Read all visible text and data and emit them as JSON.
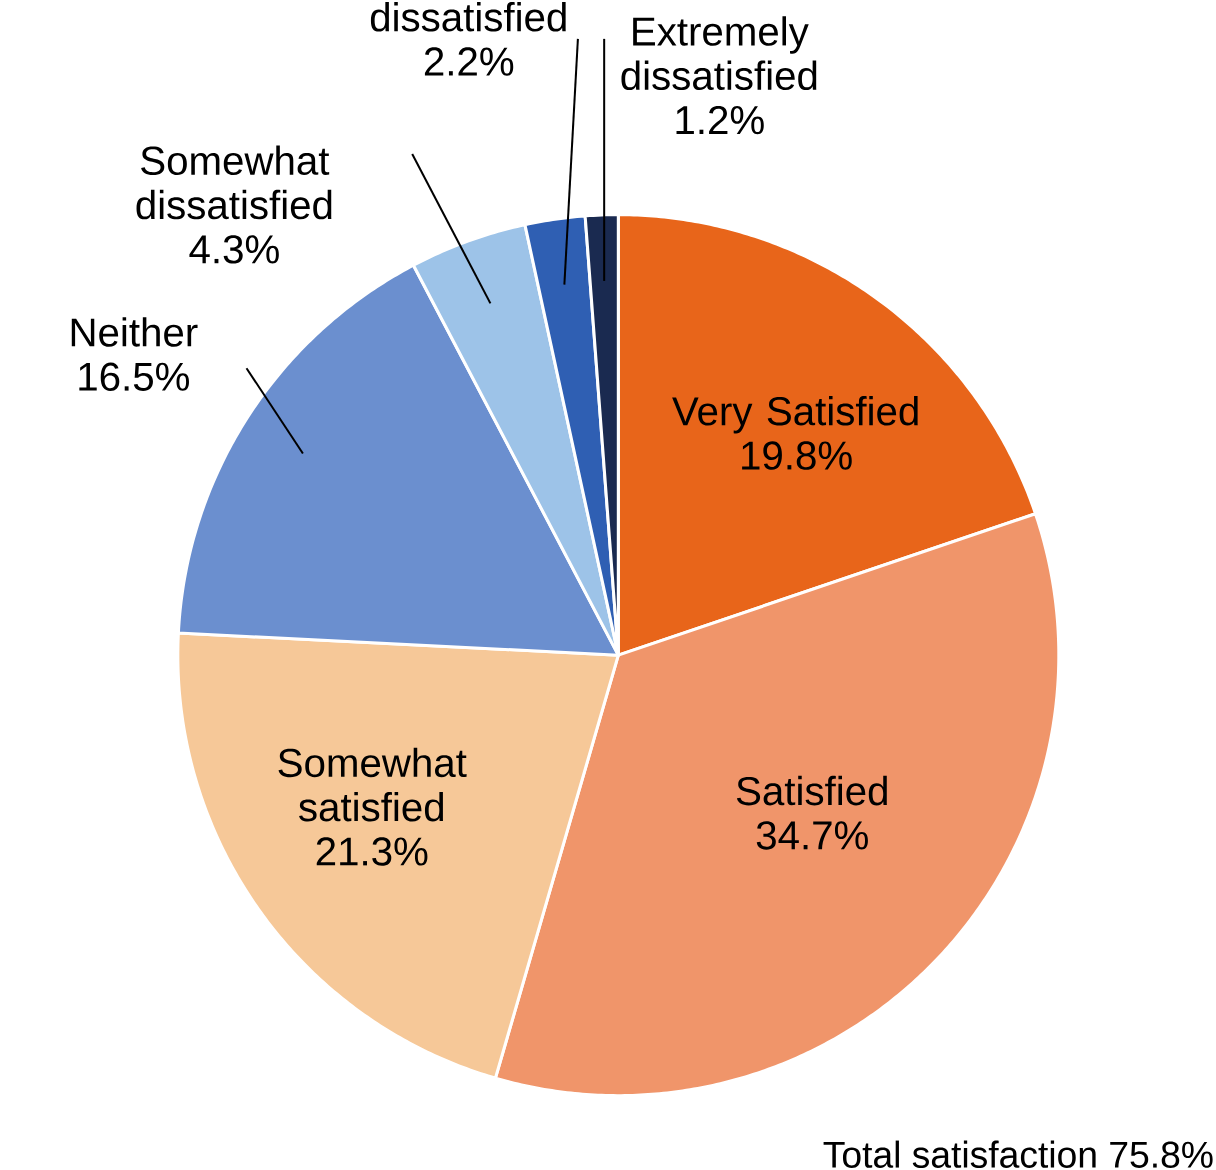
{
  "chart_data": {
    "type": "pie",
    "categories": [
      "Very Satisfied",
      "Satisfied",
      "Somewhat satisfied",
      "Neither",
      "Somewhat dissatisfied",
      "dissatisfied",
      "Extremely dissatisfied"
    ],
    "values": [
      19.8,
      34.7,
      21.3,
      16.5,
      4.3,
      2.2,
      1.2
    ],
    "colors": [
      "#e8651a",
      "#f0956a",
      "#f6c898",
      "#6b8fcf",
      "#9dc3e8",
      "#2f5fb3",
      "#1a2a50"
    ],
    "value_labels": [
      "19.8%",
      "34.7%",
      "21.3%",
      "16.5%",
      "4.3%",
      "2.2%",
      "1.2%"
    ],
    "annotations": [
      "Total satisfaction 75.8%"
    ]
  }
}
